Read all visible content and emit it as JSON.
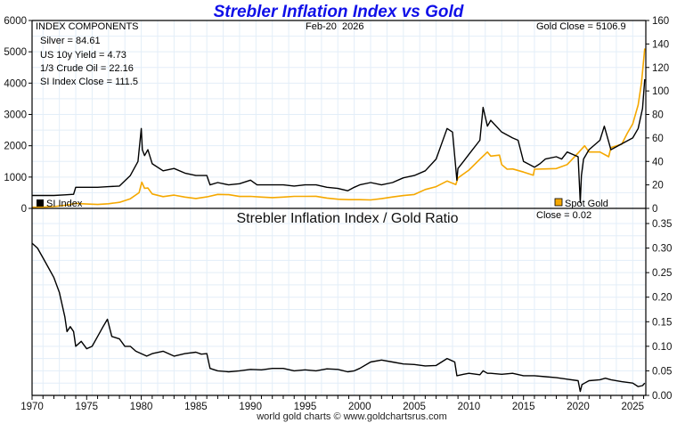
{
  "chart_data": [
    {
      "type": "line",
      "title": "Strebler Inflation Index vs Gold",
      "date_label": "Feb-20  2026",
      "components_heading": "INDEX COMPONENTS",
      "components": [
        "Silver = 84.61",
        "US 10y Yield = 4.73",
        "1/3 Crude Oil = 22.16",
        "SI Index Close = 111.5"
      ],
      "gold_close_label": "Gold Close = 5106.9",
      "xlim": [
        1970,
        2026.2
      ],
      "left_axis": {
        "label": "Spot Gold",
        "ylim": [
          0,
          6000
        ],
        "ticks": [
          0,
          1000,
          2000,
          3000,
          4000,
          5000,
          6000
        ]
      },
      "right_axis": {
        "label": "SI Index",
        "ylim": [
          0,
          160
        ],
        "ticks": [
          0,
          20,
          40,
          60,
          80,
          100,
          120,
          140,
          160
        ]
      },
      "legend": [
        {
          "name": "SI Index",
          "color": "#000000",
          "position": "bottom-left"
        },
        {
          "name": "Spot Gold",
          "color": "#f5a800",
          "position": "bottom-right"
        }
      ],
      "grid": true,
      "series": [
        {
          "name": "SI Index",
          "axis": "right",
          "color": "#000000",
          "x": [
            1970,
            1971,
            1972,
            1973,
            1973.8,
            1974,
            1975,
            1976,
            1977,
            1978,
            1979,
            1979.7,
            1980.0,
            1980.1,
            1980.3,
            1980.6,
            1981,
            1982,
            1983,
            1984,
            1985,
            1986,
            1986.3,
            1987,
            1988,
            1989,
            1990,
            1990.6,
            1991,
            1992,
            1993,
            1994,
            1995,
            1996,
            1997,
            1998,
            1998.9,
            1999.5,
            2000,
            2001,
            2002,
            2003,
            2004,
            2005,
            2006,
            2007,
            2008,
            2008.5,
            2008.9,
            2009,
            2009.5,
            2010,
            2011,
            2011.3,
            2011.7,
            2012,
            2013,
            2014,
            2014.5,
            2015,
            2016,
            2016.5,
            2017,
            2018,
            2018.5,
            2019,
            2020,
            2020.2,
            2020.3,
            2020.5,
            2021,
            2022,
            2022.4,
            2023,
            2024,
            2025,
            2025.5,
            2025.9,
            2026.1
          ],
          "y": [
            11,
            11,
            11,
            11.5,
            12,
            18,
            18,
            18,
            18.5,
            19,
            28,
            40,
            68,
            50,
            45,
            50,
            38,
            32,
            34,
            30,
            28,
            28,
            20,
            22,
            20,
            21,
            24,
            20,
            20,
            20,
            20,
            19,
            20,
            20,
            18,
            17,
            15,
            18,
            20,
            22,
            20,
            22,
            26,
            28,
            32,
            42,
            68,
            65,
            24,
            34,
            40,
            46,
            58,
            86,
            70,
            75,
            65,
            60,
            58,
            40,
            35,
            38,
            42,
            44,
            42,
            48,
            44,
            5,
            28,
            42,
            50,
            58,
            70,
            50,
            55,
            60,
            68,
            85,
            110
          ]
        },
        {
          "name": "Spot Gold",
          "axis": "left",
          "color": "#f5a800",
          "x": [
            1970,
            1971,
            1972,
            1973,
            1974,
            1975,
            1976,
            1977,
            1978,
            1979,
            1979.8,
            1980.05,
            1980.3,
            1980.6,
            1981,
            1982,
            1983,
            1984,
            1985,
            1986,
            1987,
            1988,
            1989,
            1990,
            1991,
            1992,
            1993,
            1994,
            1995,
            1996,
            1997,
            1998,
            1999,
            2000,
            2001,
            2002,
            2003,
            2004,
            2005,
            2006,
            2007,
            2008,
            2008.8,
            2009,
            2010,
            2011,
            2011.7,
            2012,
            2012.8,
            2013,
            2013.5,
            2014,
            2015,
            2015.9,
            2016,
            2017,
            2018,
            2019,
            2020,
            2020.6,
            2021,
            2022,
            2022.8,
            2023,
            2024,
            2024.5,
            2025,
            2025.5,
            2025.8,
            2026.1
          ],
          "y": [
            36,
            40,
            58,
            97,
            160,
            140,
            125,
            148,
            193,
            306,
            500,
            835,
            640,
            650,
            460,
            375,
            424,
            360,
            317,
            368,
            446,
            437,
            381,
            383,
            362,
            343,
            360,
            384,
            384,
            388,
            331,
            294,
            279,
            279,
            271,
            310,
            363,
            409,
            444,
            604,
            695,
            872,
            760,
            972,
            1224,
            1570,
            1800,
            1670,
            1700,
            1400,
            1250,
            1260,
            1160,
            1060,
            1250,
            1260,
            1270,
            1400,
            1770,
            2000,
            1800,
            1800,
            1650,
            1940,
            2050,
            2400,
            2700,
            3300,
            4000,
            5107
          ]
        }
      ]
    },
    {
      "type": "line",
      "title": "Strebler Inflation Index / Gold Ratio",
      "close_label": "Close = 0.02",
      "xlabel": "",
      "xlim": [
        1970,
        2026.2
      ],
      "ylim": [
        0,
        0.35
      ],
      "right_axis_ticks": [
        "0.00",
        "0.05",
        "0.10",
        "0.15",
        "0.20",
        "0.25",
        "0.30",
        "0.35"
      ],
      "x_ticks": [
        1970,
        1975,
        1980,
        1985,
        1990,
        1995,
        2000,
        2005,
        2010,
        2015,
        2020,
        2025
      ],
      "grid": true,
      "series": [
        {
          "name": "SI Index / Gold",
          "color": "#000000",
          "x": [
            1970,
            1970.5,
            1971,
            1971.5,
            1972,
            1972.5,
            1973,
            1973.2,
            1973.5,
            1973.8,
            1974,
            1974.5,
            1975,
            1975.5,
            1976,
            1976.5,
            1976.9,
            1977.3,
            1978,
            1978.5,
            1979,
            1979.5,
            1980,
            1980.5,
            1981,
            1982,
            1983,
            1984,
            1985,
            1985.5,
            1986,
            1986.3,
            1987,
            1988,
            1989,
            1990,
            1991,
            1992,
            1993,
            1994,
            1995,
            1996,
            1997,
            1998,
            1998.9,
            1999.5,
            2000,
            2001,
            2002,
            2003,
            2004,
            2005,
            2006,
            2007,
            2008,
            2008.7,
            2008.9,
            2009.5,
            2010,
            2011,
            2011.3,
            2011.7,
            2012,
            2013,
            2014,
            2015,
            2016,
            2017,
            2018,
            2019,
            2020,
            2020.2,
            2020.35,
            2020.6,
            2021,
            2022,
            2022.5,
            2023,
            2024,
            2025,
            2025.5,
            2025.9,
            2026.1
          ],
          "y": [
            0.31,
            0.3,
            0.28,
            0.26,
            0.24,
            0.21,
            0.16,
            0.13,
            0.14,
            0.13,
            0.1,
            0.11,
            0.095,
            0.1,
            0.12,
            0.14,
            0.155,
            0.12,
            0.115,
            0.1,
            0.1,
            0.09,
            0.085,
            0.08,
            0.085,
            0.09,
            0.08,
            0.085,
            0.088,
            0.084,
            0.085,
            0.055,
            0.05,
            0.048,
            0.05,
            0.053,
            0.052,
            0.055,
            0.055,
            0.05,
            0.052,
            0.05,
            0.054,
            0.053,
            0.048,
            0.05,
            0.055,
            0.068,
            0.072,
            0.068,
            0.064,
            0.063,
            0.06,
            0.061,
            0.075,
            0.068,
            0.04,
            0.043,
            0.045,
            0.042,
            0.05,
            0.045,
            0.045,
            0.043,
            0.045,
            0.04,
            0.04,
            0.038,
            0.036,
            0.033,
            0.03,
            0.008,
            0.022,
            0.025,
            0.03,
            0.032,
            0.035,
            0.032,
            0.028,
            0.025,
            0.018,
            0.02,
            0.025
          ]
        }
      ]
    }
  ],
  "footer": "world gold charts © www.goldchartsrus.com"
}
